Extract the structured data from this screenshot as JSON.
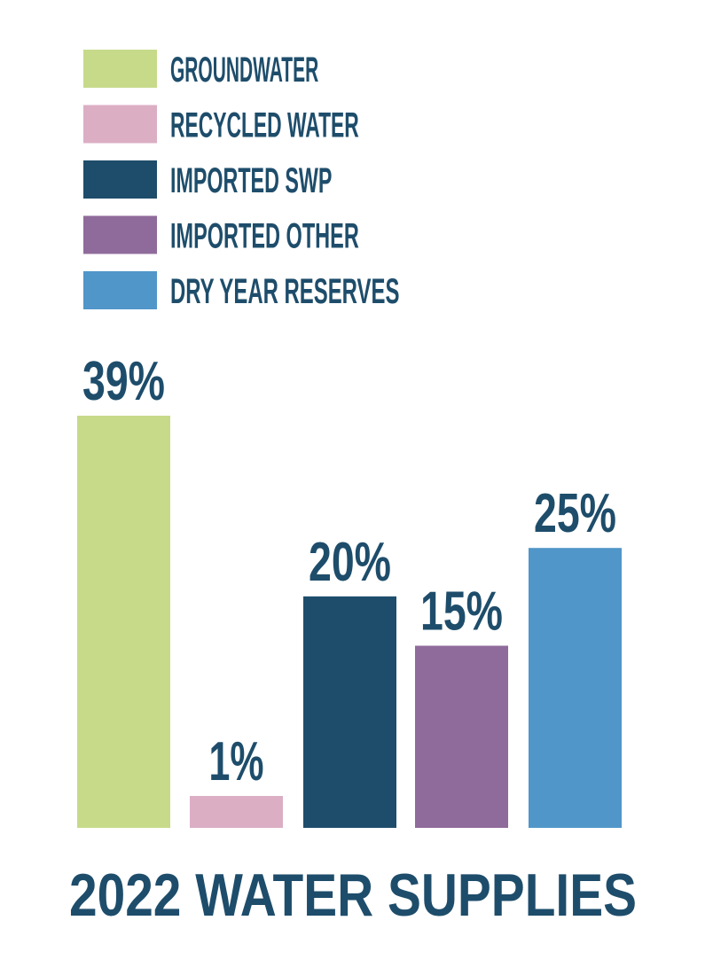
{
  "chart_data": {
    "type": "bar",
    "title": "2022 WATER SUPPLIES",
    "xlabel": "",
    "ylabel": "",
    "grid": false,
    "legend_position": "top-left",
    "categories": [
      "GROUNDWATER",
      "RECYCLED WATER",
      "IMPORTED SWP",
      "IMPORTED OTHER",
      "DRY YEAR RESERVES"
    ],
    "values": [
      39,
      1,
      20,
      15,
      25
    ],
    "value_unit": "%",
    "data_labels": [
      "39%",
      "1%",
      "20%",
      "15%",
      "25%"
    ],
    "colors": [
      "#c7da8a",
      "#dbaec4",
      "#1e4d6b",
      "#8f6b9b",
      "#5096c9"
    ],
    "legend": [
      {
        "label": "GROUNDWATER",
        "color": "#c7da8a"
      },
      {
        "label": "RECYCLED WATER",
        "color": "#dbaec4"
      },
      {
        "label": "IMPORTED SWP",
        "color": "#1e4d6b"
      },
      {
        "label": "IMPORTED OTHER",
        "color": "#8f6b9b"
      },
      {
        "label": "DRY YEAR RESERVES",
        "color": "#5096c9"
      }
    ],
    "text_color": "#1e4d6b"
  }
}
